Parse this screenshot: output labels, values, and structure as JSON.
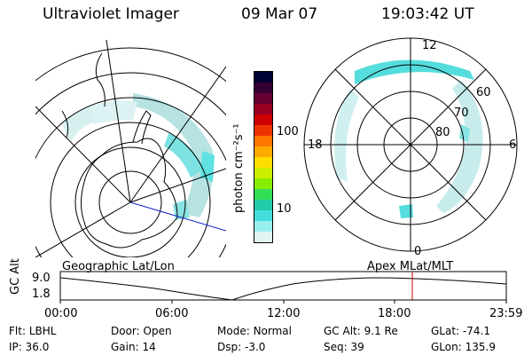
{
  "header": {
    "instrument": "Ultraviolet Imager",
    "date": "09 Mar 07",
    "time": "19:03:42 UT"
  },
  "colorbar": {
    "unit_label": "photon cm⁻²s⁻¹",
    "ticks": [
      "100",
      "10"
    ],
    "colors": [
      "#000033",
      "#330033",
      "#660033",
      "#990022",
      "#cc0000",
      "#ee3300",
      "#ff7700",
      "#ffaa00",
      "#ffdd00",
      "#ccee00",
      "#88ee00",
      "#33dd55",
      "#22ccaa",
      "#44dddd",
      "#99eeee",
      "#e0f4f4"
    ]
  },
  "geo_map": {
    "projection_label": "Geographic Lat/Lon"
  },
  "mag_dial": {
    "projection_label": "Apex MLat/MLT",
    "mlt_labels": {
      "top": "12",
      "left": "18",
      "right": "6",
      "bottom": "0"
    },
    "lat_labels": [
      "60",
      "70",
      "80"
    ]
  },
  "altitude_plot": {
    "ylabel": "GC Alt",
    "yticks": [
      "9.0",
      "1.8"
    ],
    "xticks": [
      "00:00",
      "06:00",
      "12:00",
      "18:00",
      "23:59"
    ],
    "marker_color": "#cc0000"
  },
  "status": {
    "row1": [
      {
        "key": "Flt:",
        "value": "LBHL"
      },
      {
        "key": "Door:",
        "value": "Open"
      },
      {
        "key": "Mode:",
        "value": "Normal"
      },
      {
        "key": "GC Alt:",
        "value": "9.1 Re"
      },
      {
        "key": "GLat:",
        "value": "-74.1"
      }
    ],
    "row2": [
      {
        "key": "IP:",
        "value": "36.0"
      },
      {
        "key": "Gain:",
        "value": "14"
      },
      {
        "key": "Dsp:",
        "value": "-3.0"
      },
      {
        "key": "Seq:",
        "value": "39"
      },
      {
        "key": "GLon:",
        "value": "135.9"
      }
    ]
  }
}
